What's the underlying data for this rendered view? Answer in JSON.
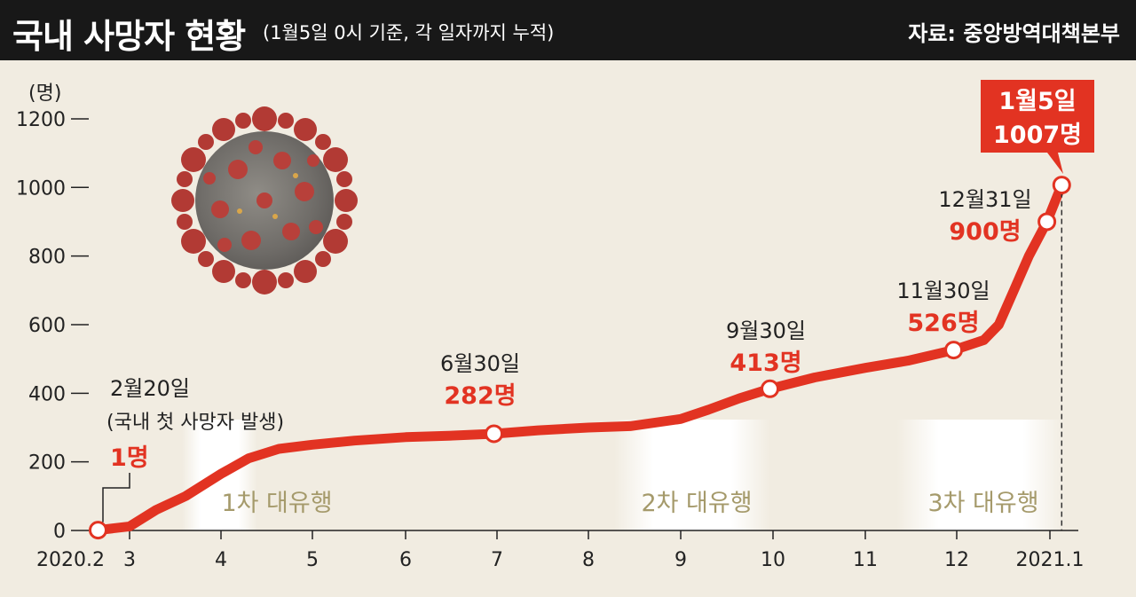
{
  "header": {
    "title": "국내 사망자 현황",
    "subtitle": "(1월5일 0시 기준, 각 일자까지 누적)",
    "source": "자료: 중앙방역대책본부"
  },
  "chart_data": {
    "type": "line",
    "unit_label": "(명)",
    "ylim": [
      0,
      1200
    ],
    "yticks": [
      0,
      200,
      400,
      600,
      800,
      1000,
      1200
    ],
    "x_tick_labels": [
      "2020.2",
      "3",
      "4",
      "5",
      "6",
      "7",
      "8",
      "9",
      "10",
      "11",
      "12",
      "2021.1"
    ],
    "series": [
      {
        "x": [
          "2020-02-20",
          "2020-03-01",
          "2020-03-10",
          "2020-03-20",
          "2020-04-01",
          "2020-04-10",
          "2020-04-20",
          "2020-05-01",
          "2020-05-15",
          "2020-06-01",
          "2020-06-15",
          "2020-06-30",
          "2020-07-15",
          "2020-08-01",
          "2020-08-15",
          "2020-09-01",
          "2020-09-10",
          "2020-09-20",
          "2020-09-30",
          "2020-10-15",
          "2020-11-01",
          "2020-11-15",
          "2020-11-30",
          "2020-12-10",
          "2020-12-15",
          "2020-12-20",
          "2020-12-25",
          "2020-12-31",
          "2021-01-05"
        ],
        "y": [
          1,
          12,
          60,
          100,
          165,
          210,
          238,
          250,
          262,
          272,
          276,
          282,
          292,
          300,
          304,
          325,
          352,
          385,
          413,
          446,
          474,
          495,
          526,
          555,
          600,
          700,
          800,
          900,
          1007
        ]
      }
    ],
    "annotations": [
      {
        "date": "2월20일",
        "sub": "(국내 첫 사망자 발생)",
        "value": "1명"
      },
      {
        "date": "6월30일",
        "value": "282명"
      },
      {
        "date": "9월30일",
        "value": "413명"
      },
      {
        "date": "11월30일",
        "value": "526명"
      },
      {
        "date": "12월31일",
        "value": "900명"
      },
      {
        "date": "1월5일",
        "value": "1007명"
      }
    ],
    "waves": [
      "1차 대유행",
      "2차 대유행",
      "3차 대유행"
    ],
    "colors": {
      "line": "#e23322",
      "marker_fill": "#ffffff",
      "box": "#e23322",
      "wave_text": "#a59a6b",
      "background": "#f1ece1"
    }
  }
}
